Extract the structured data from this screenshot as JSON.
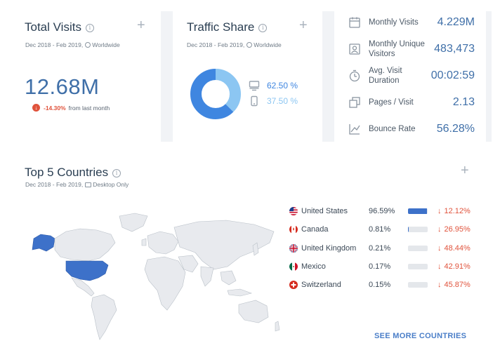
{
  "total_visits": {
    "title": "Total Visits",
    "period": "Dec 2018 - Feb 2019,",
    "region": "Worldwide",
    "value": "12.68M",
    "change_pct": "-14.30%",
    "change_label": "from last month"
  },
  "traffic_share": {
    "title": "Traffic Share",
    "period": "Dec 2018 - Feb 2019,",
    "region": "Worldwide",
    "desktop_pct": "62.50 %",
    "mobile_pct": "37.50 %",
    "desktop_value": 62.5,
    "mobile_value": 37.5,
    "desktop_color": "#3f86e0",
    "mobile_color": "#8cc6f2"
  },
  "metrics": [
    {
      "label": "Monthly Visits",
      "value": "4.229M",
      "icon": "calendar-icon"
    },
    {
      "label": "Monthly Unique Visitors",
      "value": "483,473",
      "icon": "visitor-icon"
    },
    {
      "label": "Avg. Visit Duration",
      "value": "00:02:59",
      "icon": "clock-icon"
    },
    {
      "label": "Pages / Visit",
      "value": "2.13",
      "icon": "pages-icon"
    },
    {
      "label": "Bounce Rate",
      "value": "56.28%",
      "icon": "bounce-icon"
    }
  ],
  "countries": {
    "title": "Top 5 Countries",
    "period": "Dec 2018 - Feb 2019,",
    "scope": "Desktop Only",
    "rows": [
      {
        "name": "United States",
        "share": "96.59%",
        "share_value": 96.59,
        "change": "12.12%",
        "flag": "us-flag-icon"
      },
      {
        "name": "Canada",
        "share": "0.81%",
        "share_value": 0.81,
        "change": "26.95%",
        "flag": "ca-flag-icon"
      },
      {
        "name": "United Kingdom",
        "share": "0.21%",
        "share_value": 0.21,
        "change": "48.44%",
        "flag": "uk-flag-icon"
      },
      {
        "name": "Mexico",
        "share": "0.17%",
        "share_value": 0.17,
        "change": "42.91%",
        "flag": "mx-flag-icon"
      },
      {
        "name": "Switzerland",
        "share": "0.15%",
        "share_value": 0.15,
        "change": "45.87%",
        "flag": "ch-flag-icon"
      }
    ],
    "see_more": "SEE MORE COUNTRIES"
  },
  "colors": {
    "accent": "#3f6fa8",
    "negative": "#e0533c",
    "map_highlight": "#3d71c9",
    "map_base": "#e8eaee"
  }
}
